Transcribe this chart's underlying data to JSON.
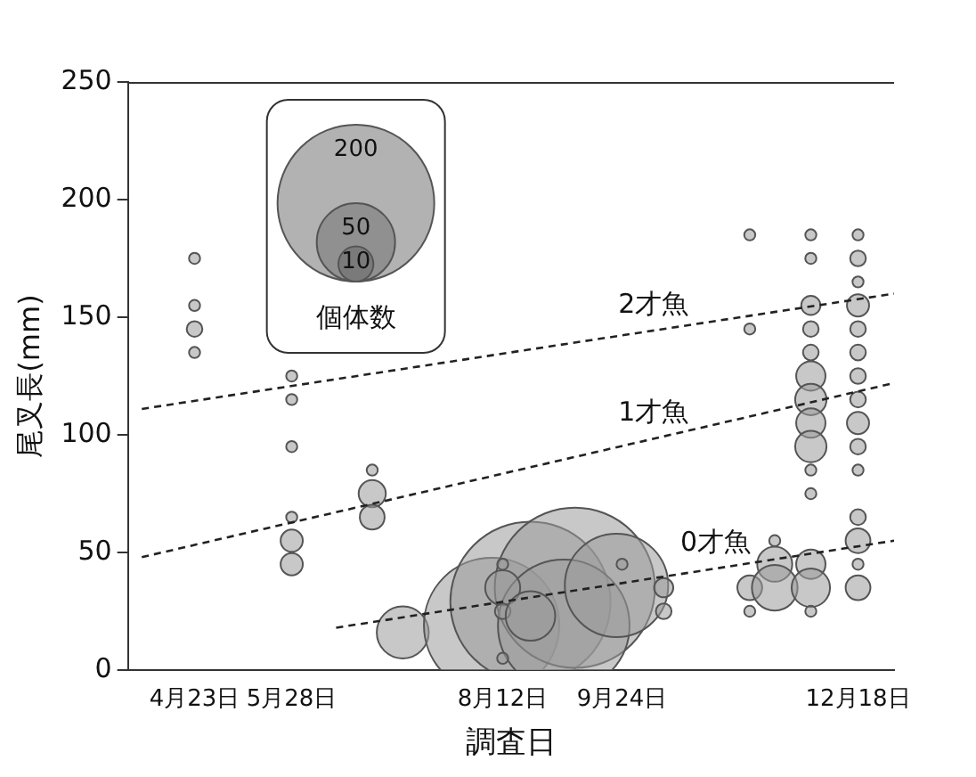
{
  "chart_data": {
    "type": "bubble",
    "xlabel": "調査日",
    "ylabel": "尾叉長(mm)",
    "legend_title": "個体数",
    "size_legend": [
      10,
      50,
      200
    ],
    "xlim": [
      "--03-30",
      "--12-31"
    ],
    "xticks": [
      {
        "value": "--04-23",
        "label": "4月23日"
      },
      {
        "value": "--05-28",
        "label": "5月28日"
      },
      {
        "value": "--08-12",
        "label": "8月12日"
      },
      {
        "value": "--09-24",
        "label": "9月24日"
      },
      {
        "value": "--12-18",
        "label": "12月18日"
      }
    ],
    "ylim": [
      0,
      250
    ],
    "yticks": [
      0,
      50,
      100,
      150,
      200,
      250
    ],
    "series": [
      {
        "color": "#9a9a9a",
        "x": [
          "--04-23",
          "--04-23",
          "--04-23",
          "--04-23",
          "--05-28",
          "--05-28",
          "--05-28",
          "--05-28",
          "--05-28",
          "--05-28",
          "--06-26",
          "--06-26",
          "--06-26",
          "--07-07",
          "--08-08",
          "--08-22",
          "--09-07",
          "--09-03",
          "--09-22",
          "--08-12",
          "--08-12",
          "--08-12",
          "--08-12",
          "--08-22",
          "--09-24",
          "--10-09",
          "--10-09",
          "--11-09",
          "--11-09",
          "--11-09",
          "--11-09",
          "--11-18",
          "--11-18",
          "--11-18",
          "--12-01",
          "--12-01",
          "--12-01",
          "--12-01",
          "--12-01",
          "--12-01",
          "--12-01",
          "--12-01",
          "--12-01",
          "--12-01",
          "--12-01",
          "--12-01",
          "--12-01",
          "--12-01",
          "--12-18",
          "--12-18",
          "--12-18",
          "--12-18",
          "--12-18",
          "--12-18",
          "--12-18",
          "--12-18",
          "--12-18",
          "--12-18",
          "--12-18",
          "--12-18",
          "--12-18",
          "--12-18",
          "--12-18"
        ],
        "values": [
          175,
          155,
          145,
          135,
          125,
          115,
          95,
          65,
          55,
          45,
          85,
          75,
          65,
          16,
          19,
          29,
          35,
          19,
          36,
          5,
          45,
          35,
          25,
          23,
          45,
          35,
          25,
          185,
          145,
          35,
          25,
          55,
          45,
          35,
          185,
          175,
          155,
          145,
          135,
          125,
          115,
          105,
          95,
          85,
          75,
          45,
          35,
          25,
          185,
          175,
          165,
          155,
          145,
          135,
          125,
          115,
          105,
          95,
          85,
          65,
          55,
          45,
          35
        ],
        "sizes": [
          1,
          1,
          2,
          1,
          1,
          1,
          1,
          1,
          4,
          4,
          1,
          6,
          5,
          22,
          149,
          209,
          209,
          141,
          87,
          1,
          1,
          10,
          2,
          20,
          1,
          3,
          2,
          1,
          1,
          5,
          1,
          1,
          10,
          17,
          1,
          1,
          3,
          2,
          2,
          7,
          8,
          7,
          8,
          1,
          1,
          7,
          12,
          1,
          1,
          2,
          1,
          4,
          2,
          2,
          2,
          2,
          4,
          2,
          1,
          2,
          5,
          1,
          5
        ]
      },
      {
        "type": "line",
        "color": "#222222",
        "line_style": "dashed",
        "x": [
          "--04-04",
          "--12-31"
        ],
        "values": [
          111,
          160
        ]
      },
      {
        "type": "line",
        "color": "#222222",
        "line_style": "dashed",
        "x": [
          "--04-04",
          "--12-31"
        ],
        "values": [
          48,
          122
        ]
      },
      {
        "type": "line",
        "color": "#222222",
        "line_style": "dashed",
        "x": [
          "--06-13",
          "--12-31"
        ],
        "values": [
          18,
          55
        ]
      }
    ],
    "annotations": [
      "2才魚",
      "1才魚",
      "0才魚"
    ]
  }
}
